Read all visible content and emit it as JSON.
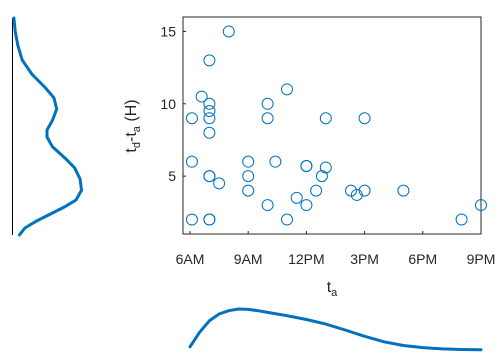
{
  "chart_data": {
    "type": "scatter",
    "xlabel": {
      "base": "t",
      "sub": "a"
    },
    "ylabel": {
      "t1": "t",
      "sub1": "d",
      "mid": "-t",
      "sub2": "a",
      "unit": " (H)"
    },
    "x_axis": {
      "unit": "hour of day",
      "range": [
        6,
        21
      ],
      "ticks": [
        {
          "value": 6,
          "label": "6AM"
        },
        {
          "value": 9,
          "label": "9AM"
        },
        {
          "value": 12,
          "label": "12PM"
        },
        {
          "value": 15,
          "label": "3PM"
        },
        {
          "value": 18,
          "label": "6PM"
        },
        {
          "value": 21,
          "label": "9PM"
        }
      ]
    },
    "y_axis": {
      "range": [
        1,
        16
      ],
      "ticks": [
        {
          "value": 5,
          "label": "5"
        },
        {
          "value": 10,
          "label": "10"
        },
        {
          "value": 15,
          "label": "15"
        }
      ]
    },
    "grid": false,
    "marker_color": "#0072BD",
    "marginal_color": "#0072BD",
    "points": [
      {
        "x": 7.0,
        "y": 13.0
      },
      {
        "x": 7.0,
        "y": 10.0
      },
      {
        "x": 7.0,
        "y": 9.5
      },
      {
        "x": 7.0,
        "y": 9.0
      },
      {
        "x": 7.0,
        "y": 8.0
      },
      {
        "x": 7.0,
        "y": 5.0
      },
      {
        "x": 7.0,
        "y": 2.0
      },
      {
        "x": 7.0,
        "y": 2.0
      },
      {
        "x": 6.1,
        "y": 9.0
      },
      {
        "x": 6.1,
        "y": 6.0
      },
      {
        "x": 6.1,
        "y": 2.0
      },
      {
        "x": 6.6,
        "y": 10.5
      },
      {
        "x": 7.0,
        "y": 5.0
      },
      {
        "x": 7.5,
        "y": 4.5
      },
      {
        "x": 8.0,
        "y": 15.0
      },
      {
        "x": 9.0,
        "y": 6.0
      },
      {
        "x": 9.0,
        "y": 5.0
      },
      {
        "x": 9.0,
        "y": 4.0
      },
      {
        "x": 10.0,
        "y": 10.0
      },
      {
        "x": 10.0,
        "y": 9.0
      },
      {
        "x": 10.0,
        "y": 3.0
      },
      {
        "x": 10.4,
        "y": 6.0
      },
      {
        "x": 11.0,
        "y": 11.0
      },
      {
        "x": 11.0,
        "y": 2.0
      },
      {
        "x": 11.5,
        "y": 3.5
      },
      {
        "x": 12.0,
        "y": 5.7
      },
      {
        "x": 12.0,
        "y": 5.7
      },
      {
        "x": 12.0,
        "y": 3.0
      },
      {
        "x": 12.5,
        "y": 4.0
      },
      {
        "x": 12.8,
        "y": 5.0
      },
      {
        "x": 13.0,
        "y": 5.6
      },
      {
        "x": 13.0,
        "y": 9.0
      },
      {
        "x": 14.3,
        "y": 4.0
      },
      {
        "x": 14.6,
        "y": 3.7
      },
      {
        "x": 15.0,
        "y": 9.0
      },
      {
        "x": 15.0,
        "y": 4.0
      },
      {
        "x": 17.0,
        "y": 4.0
      },
      {
        "x": 20.0,
        "y": 2.0
      },
      {
        "x": 21.0,
        "y": 3.0
      }
    ],
    "x_marginal_density": [
      {
        "x": 6.0,
        "d": 0.1
      },
      {
        "x": 6.5,
        "d": 0.45
      },
      {
        "x": 7.0,
        "d": 0.72
      },
      {
        "x": 7.5,
        "d": 0.88
      },
      {
        "x": 8.0,
        "d": 0.96
      },
      {
        "x": 8.5,
        "d": 1.0
      },
      {
        "x": 9.0,
        "d": 0.99
      },
      {
        "x": 9.5,
        "d": 0.96
      },
      {
        "x": 10.0,
        "d": 0.92
      },
      {
        "x": 11.0,
        "d": 0.84
      },
      {
        "x": 12.0,
        "d": 0.75
      },
      {
        "x": 13.0,
        "d": 0.64
      },
      {
        "x": 14.0,
        "d": 0.5
      },
      {
        "x": 15.0,
        "d": 0.35
      },
      {
        "x": 16.0,
        "d": 0.22
      },
      {
        "x": 17.0,
        "d": 0.13
      },
      {
        "x": 18.0,
        "d": 0.08
      },
      {
        "x": 19.0,
        "d": 0.05
      },
      {
        "x": 20.0,
        "d": 0.035
      },
      {
        "x": 21.0,
        "d": 0.03
      }
    ],
    "y_marginal_density": [
      {
        "y": 16.5,
        "d": 0.02
      },
      {
        "y": 15.5,
        "d": 0.04
      },
      {
        "y": 14.5,
        "d": 0.08
      },
      {
        "y": 13.5,
        "d": 0.14
      },
      {
        "y": 12.5,
        "d": 0.28
      },
      {
        "y": 11.5,
        "d": 0.48
      },
      {
        "y": 10.8,
        "d": 0.6
      },
      {
        "y": 10.0,
        "d": 0.64
      },
      {
        "y": 9.2,
        "d": 0.58
      },
      {
        "y": 8.5,
        "d": 0.5
      },
      {
        "y": 8.0,
        "d": 0.5
      },
      {
        "y": 7.3,
        "d": 0.58
      },
      {
        "y": 6.5,
        "d": 0.76
      },
      {
        "y": 5.8,
        "d": 0.9
      },
      {
        "y": 5.0,
        "d": 0.98
      },
      {
        "y": 4.2,
        "d": 1.0
      },
      {
        "y": 3.5,
        "d": 0.92
      },
      {
        "y": 3.0,
        "d": 0.75
      },
      {
        "y": 2.5,
        "d": 0.55
      },
      {
        "y": 2.0,
        "d": 0.35
      },
      {
        "y": 1.5,
        "d": 0.18
      },
      {
        "y": 1.0,
        "d": 0.1
      }
    ]
  }
}
